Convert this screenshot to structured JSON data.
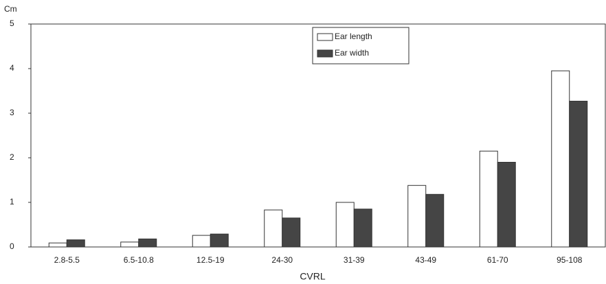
{
  "chart_data": {
    "type": "bar",
    "y_axis_label": "Cm",
    "x_axis_label": "CVRL",
    "categories": [
      "2.8-5.5",
      "6.5-10.8",
      "12.5-19",
      "24-30",
      "31-39",
      "43-49",
      "61-70",
      "95-108"
    ],
    "series": [
      {
        "name": "Ear length",
        "color": "#ffffff",
        "values": [
          0.09,
          0.11,
          0.26,
          0.83,
          1.0,
          1.38,
          2.15,
          3.95
        ]
      },
      {
        "name": "Ear width",
        "color": "#454545",
        "values": [
          0.16,
          0.18,
          0.29,
          0.65,
          0.85,
          1.18,
          1.9,
          3.27
        ]
      }
    ],
    "ylim": [
      0,
      5
    ],
    "yticks": [
      0,
      1,
      2,
      3,
      4,
      5
    ],
    "grid": false,
    "legend": "top"
  }
}
